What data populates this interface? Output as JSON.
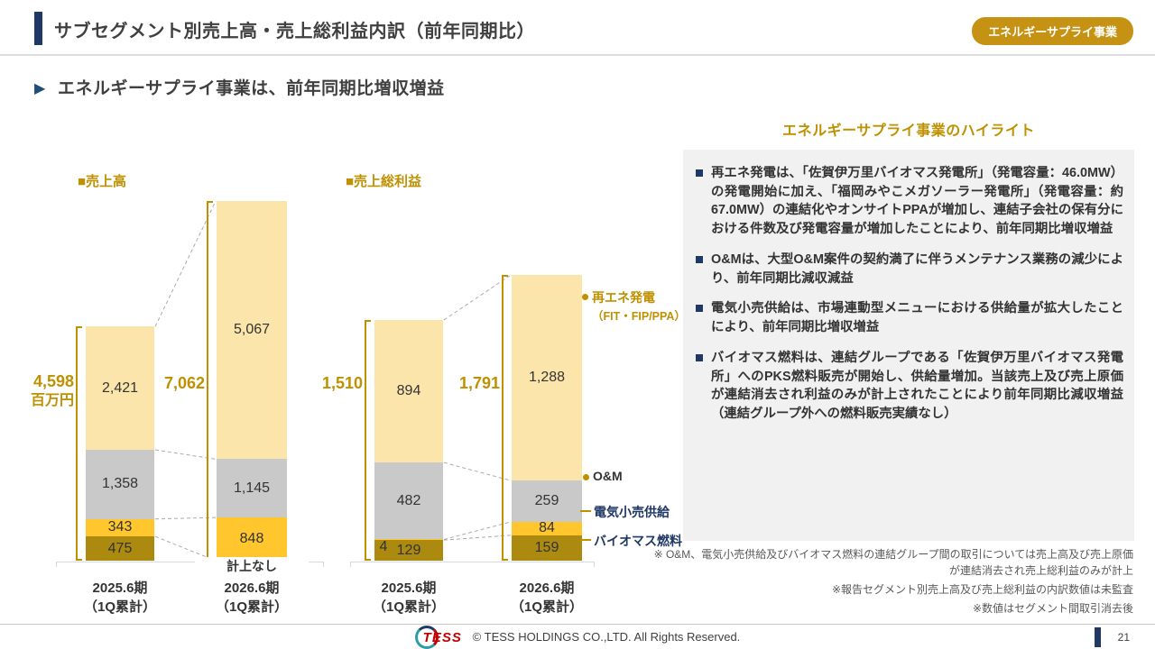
{
  "page": {
    "title": "サブセグメント別売上高・売上総利益内訳（前年同期比）",
    "badge": "エネルギーサプライ事業",
    "subtitle": "エネルギーサプライ事業は、前年同期比増収増益"
  },
  "chart_data": [
    {
      "id": "sales",
      "type": "bar",
      "stacked": true,
      "title": "■売上高",
      "unit": "百万円",
      "categories": [
        [
          "2025.6期",
          "（1Q累計）"
        ],
        [
          "2026.6期",
          "（1Q累計）"
        ]
      ],
      "series": [
        {
          "name": "バイオマス燃料",
          "color": "#AC8A10",
          "values": [
            475,
            0
          ],
          "labels": [
            "475",
            "計上なし"
          ]
        },
        {
          "name": "電気小売供給",
          "color": "#FFC62E",
          "values": [
            343,
            848
          ],
          "labels": [
            "343",
            "848"
          ]
        },
        {
          "name": "O&M",
          "color": "#C9C9C9",
          "values": [
            1358,
            1145
          ],
          "labels": [
            "1,358",
            "1,145"
          ]
        },
        {
          "name": "再エネ発電（FIT・FIP/PPA）",
          "color": "#FBE5AB",
          "values": [
            2421,
            5067
          ],
          "labels": [
            "2,421",
            "5,067"
          ]
        }
      ],
      "totals": [
        4598,
        7062
      ],
      "total_labels": [
        "4,598",
        "7,062"
      ],
      "total_unit_label": "百万円"
    },
    {
      "id": "gross-profit",
      "type": "bar",
      "stacked": true,
      "title": "■売上総利益",
      "unit": "百万円",
      "categories": [
        [
          "2025.6期",
          "（1Q累計）"
        ],
        [
          "2026.6期",
          "（1Q累計）"
        ]
      ],
      "series": [
        {
          "name": "バイオマス燃料",
          "color": "#AC8A10",
          "values": [
            129,
            159
          ],
          "labels": [
            "129",
            "159"
          ]
        },
        {
          "name": "電気小売供給",
          "color": "#FFC62E",
          "values": [
            4,
            84
          ],
          "labels": [
            "4",
            "84"
          ]
        },
        {
          "name": "O&M",
          "color": "#C9C9C9",
          "values": [
            482,
            259
          ],
          "labels": [
            "482",
            "259"
          ]
        },
        {
          "name": "再エネ発電（FIT・FIP/PPA）",
          "color": "#FBE5AB",
          "values": [
            894,
            1288
          ],
          "labels": [
            "894",
            "1,288"
          ]
        }
      ],
      "totals": [
        1510,
        1791
      ],
      "total_labels": [
        "1,510",
        "1,791"
      ]
    }
  ],
  "callouts": [
    {
      "lines": [
        "再エネ発電",
        "（FIT・FIP/PPA）"
      ],
      "color": "#BF9000",
      "marker": "dot"
    },
    {
      "lines": [
        "O&M"
      ],
      "color": "#333333",
      "marker": "dot"
    },
    {
      "lines": [
        "電気小売供給"
      ],
      "color": "#1F3864",
      "marker": "line"
    },
    {
      "lines": [
        "バイオマス燃料"
      ],
      "color": "#1F3864",
      "marker": "line"
    }
  ],
  "highlights": {
    "title": "エネルギーサプライ事業のハイライト",
    "items": [
      "再エネ発電は、「佐賀伊万里バイオマス発電所」（発電容量：46.0MW）の発電開始に加え、「福岡みやこメガソーラー発電所」（発電容量：約67.0MW）の連結化やオンサイトPPAが増加し、連結子会社の保有分における件数及び発電容量が増加したことにより、前年同期比増収増益",
      "O&Mは、大型O&M案件の契約満了に伴うメンテナンス業務の減少により、前年同期比減収減益",
      "電気小売供給は、市場連動型メニューにおける供給量が拡大したことにより、前年同期比増収増益",
      "バイオマス燃料は、連結グループである「佐賀伊万里バイオマス発電所」へのPKS燃料販売が開始し、供給量増加。当該売上及び売上原価が連結消去され利益のみが計上されたことにより前年同期比減収増益（連結グループ外への燃料販売実績なし）"
    ]
  },
  "notes": [
    "※ O&M、電気小売供給及びバイオマス燃料の連結グループ間の取引については売上高及び売上原価が連結消去され売上総利益のみが計上",
    "※報告セグメント別売上高及び売上総利益の内訳数値は未監査",
    "※数値はセグメント間取引消去後"
  ],
  "footer": {
    "logo": "TESS",
    "copyright": "© TESS HOLDINGS CO.,LTD. All Rights Reserved.",
    "page_number": "21"
  },
  "colors": {
    "accent_navy": "#1F3864",
    "gold": "#BF9000",
    "badge_bg": "#C69214",
    "panel_bg": "#F1F1F1"
  }
}
